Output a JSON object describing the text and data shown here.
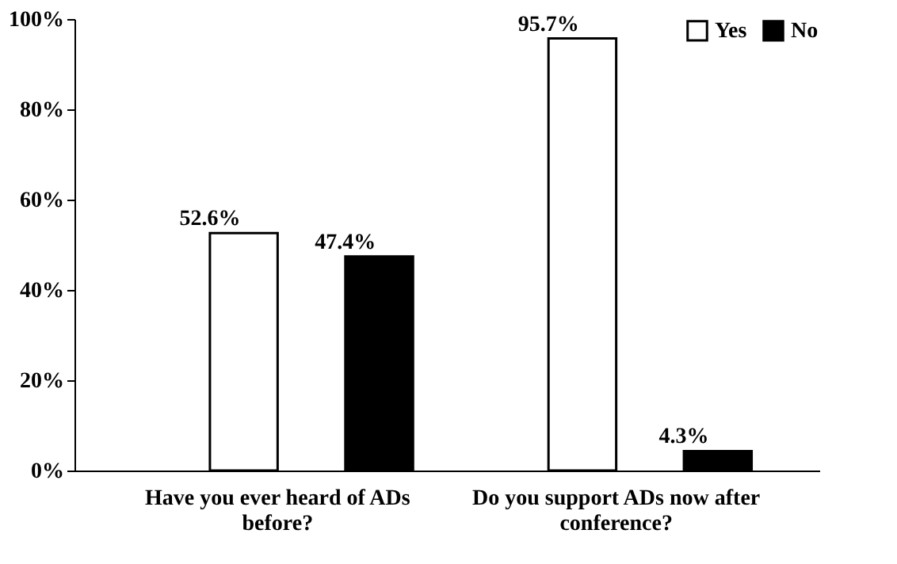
{
  "chart_data": {
    "type": "bar",
    "categories": [
      "Have you ever heard of ADs before?",
      "Do you support ADs now after conference?"
    ],
    "series": [
      {
        "name": "Yes",
        "color": "#ffffff",
        "values": [
          52.6,
          95.7
        ],
        "value_labels": [
          "52.6%",
          "95.7%"
        ]
      },
      {
        "name": "No",
        "color": "#000000",
        "values": [
          47.4,
          4.3
        ],
        "value_labels": [
          "47.4%",
          "4.3%"
        ]
      }
    ],
    "ylim": [
      0,
      100
    ],
    "yticks": [
      {
        "value": 0,
        "label": "0%"
      },
      {
        "value": 20,
        "label": "20%"
      },
      {
        "value": 40,
        "label": "40%"
      },
      {
        "value": 60,
        "label": "60%"
      },
      {
        "value": 80,
        "label": "80%"
      },
      {
        "value": 100,
        "label": "100%"
      }
    ],
    "grid": false,
    "legend": "top right"
  }
}
